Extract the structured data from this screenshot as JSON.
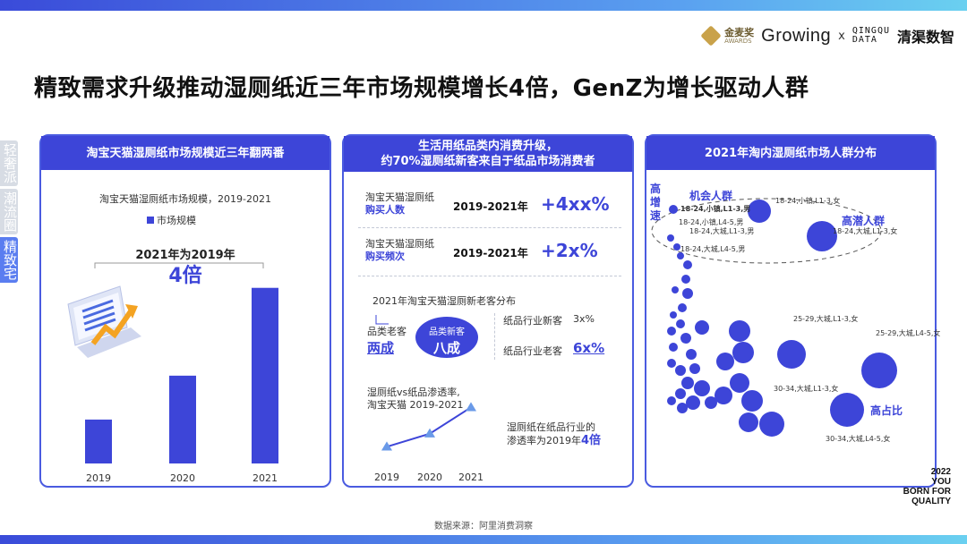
{
  "logos": {
    "gold_award": {
      "name": "金麦奖",
      "sub": "AWARDS"
    },
    "growing": "Growing",
    "x": "x",
    "qingqu": [
      "QINGQU",
      "DATA"
    ],
    "brand": "清渠数智"
  },
  "title": "精致需求升级推动湿厕纸近三年市场规模增长4倍，GenZ为增长驱动人群",
  "side_tabs": [
    {
      "label": "轻奢派",
      "active": false
    },
    {
      "label": "潮流圈",
      "active": false
    },
    {
      "label": "精致宅",
      "active": true
    }
  ],
  "card1": {
    "header": "淘宝天猫湿厕纸市场规模近三年翻两番",
    "subtitle": "淘宝天猫湿厕纸市场规模，2019-2021",
    "legend": "市场规模",
    "callout_label": "2021年为2019年",
    "callout_value": "4倍"
  },
  "card2": {
    "header_line1": "生活用纸品类内消费升级，",
    "header_line2": "约70%湿厕纸新客来自于纸品市场消费者",
    "rows": [
      {
        "label_line1": "淘宝天猫湿厕纸",
        "label_line2": "购买人数",
        "period": "2019-2021年",
        "value": "+4xx%"
      },
      {
        "label_line1": "淘宝天猫湿厕纸",
        "label_line2": "购买频次",
        "period": "2019-2021年",
        "value": "+2x%"
      }
    ],
    "dist_title": "2021年淘宝天猫湿厕新老客分布",
    "old_label": "品类老客",
    "old_value": "两成",
    "new_label": "品类新客",
    "new_value": "八成",
    "paper_new_label": "纸品行业新客",
    "paper_new_value": "3x%",
    "paper_old_label": "纸品行业老客",
    "paper_old_value": "6x%",
    "pen_label_line1": "湿厕纸vs纸品渗透率,",
    "pen_label_line2": "淘宝天猫 2019-2021",
    "pen_note_line1": "湿厕纸在纸品行业的",
    "pen_note_line2": "渗透率为2019年",
    "pen_note_value": "4倍"
  },
  "card3": {
    "header": "2021年淘内湿厕纸市场人群分布",
    "side_label": "高增速",
    "labels": {
      "opportunity": "机会人群",
      "potential": "高潜人群",
      "high_share": "高占比"
    },
    "notes": [
      "18-24,小镇,L1-3,男",
      "18-24,小镇,L4-5,男",
      "18-24,大城,L1-3,男",
      "18-24,大城,L4-5,男",
      "18-24,小镇,L1-3,女",
      "18-24,大城,L1-3,女",
      "25-29,大城,L1-3,女",
      "25-29,大城,L4-5,女",
      "30-34,大城,L1-3,女",
      "30-34,大城,L4-5,女"
    ]
  },
  "corner_tag": [
    "2022",
    "YOU",
    "BORN FOR",
    "QUALITY"
  ],
  "source": "数据来源：阿里消费洞察",
  "chart_data": [
    {
      "type": "bar",
      "title": "淘宝天猫湿厕纸市场规模，2019-2021",
      "categories": [
        "2019",
        "2020",
        "2021"
      ],
      "series": [
        {
          "name": "市场规模",
          "values": [
            1,
            2,
            4
          ]
        }
      ],
      "ylim": [
        0,
        4.3
      ],
      "color": "#3d45d8"
    },
    {
      "type": "line",
      "title": "湿厕纸vs纸品渗透率,淘宝天猫 2019-2021",
      "categories": [
        "2019",
        "2020",
        "2021"
      ],
      "series": [
        {
          "values": [
            1,
            2,
            4
          ]
        }
      ],
      "ylim": [
        0,
        4.5
      ],
      "color": "#3d45d8",
      "marker_color": "#6a9ae8"
    }
  ]
}
